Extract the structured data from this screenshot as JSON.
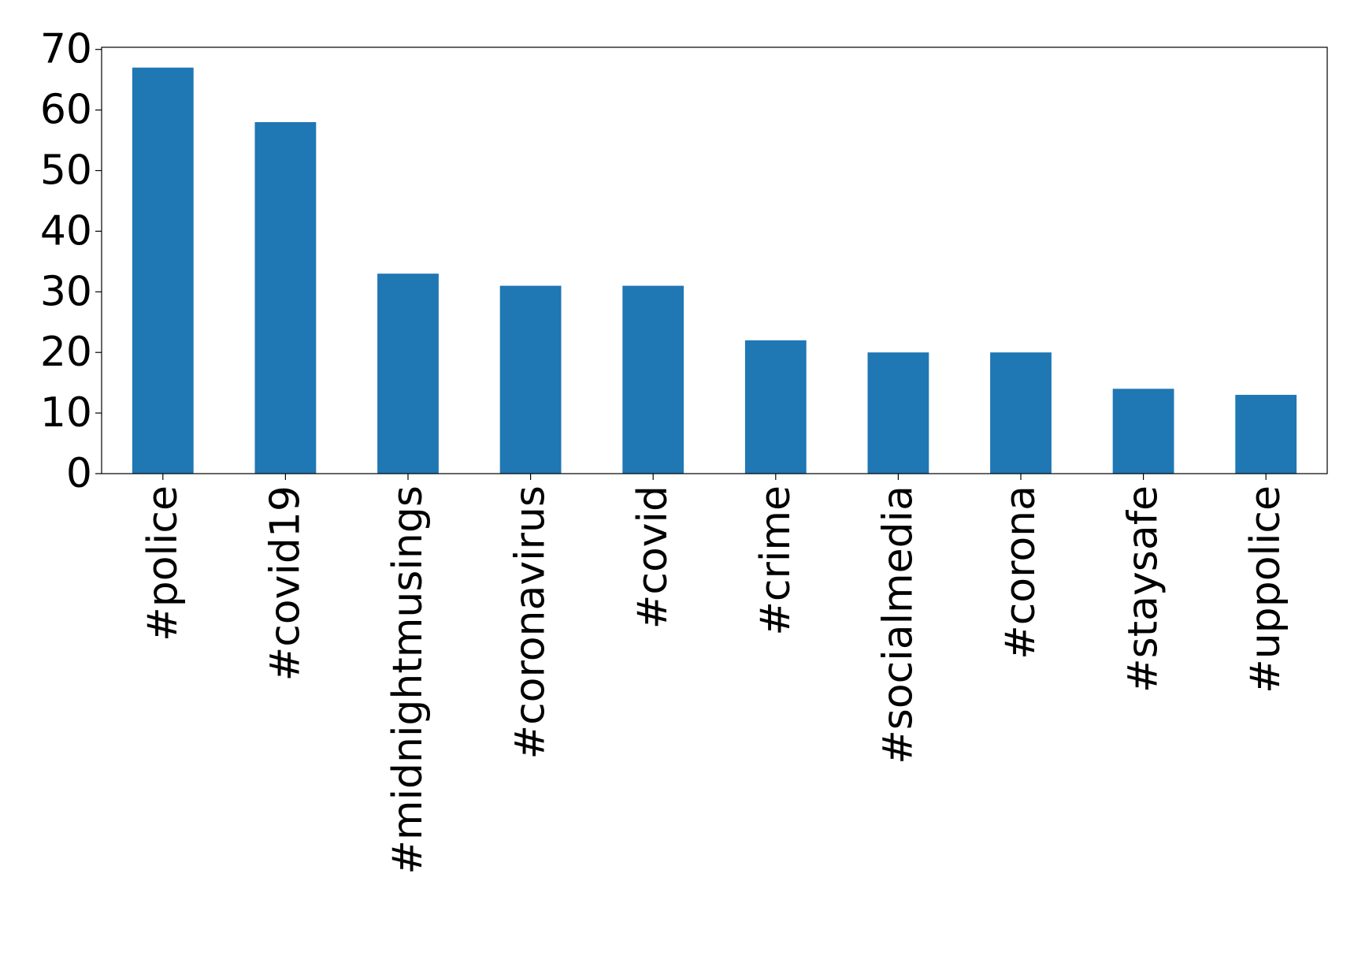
{
  "chart_data": {
    "type": "bar",
    "categories": [
      "#police",
      "#covid19",
      "#midnightmusings",
      "#coronavirus",
      "#covid",
      "#crime",
      "#socialmedia",
      "#corona",
      "#staysafe",
      "#uppolice"
    ],
    "values": [
      67,
      58,
      33,
      31,
      31,
      22,
      20,
      20,
      14,
      13
    ],
    "color": "#1f77b4",
    "ylim": [
      0,
      70.35
    ],
    "yticks": [
      0,
      10,
      20,
      30,
      40,
      50,
      60,
      70
    ],
    "grid": false
  }
}
